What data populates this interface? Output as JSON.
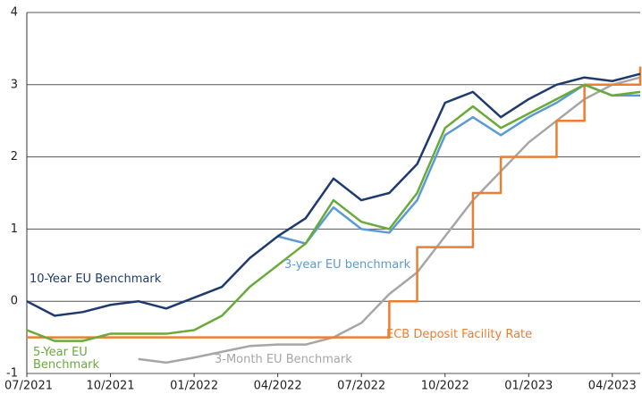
{
  "chart_data": {
    "type": "line",
    "x": [
      "07/2021",
      "08/2021",
      "09/2021",
      "10/2021",
      "11/2021",
      "12/2021",
      "01/2022",
      "02/2022",
      "03/2022",
      "04/2022",
      "05/2022",
      "06/2022",
      "07/2022",
      "08/2022",
      "09/2022",
      "10/2022",
      "11/2022",
      "12/2022",
      "01/2023",
      "02/2023",
      "03/2023",
      "04/2023",
      "05/2023"
    ],
    "xlim": [
      "07/2021",
      "05/2023"
    ],
    "xticks": [
      "07/2021",
      "10/2021",
      "01/2022",
      "04/2022",
      "07/2022",
      "10/2022",
      "01/2023",
      "04/2023"
    ],
    "ylim": [
      -1,
      4
    ],
    "yticks": [
      -1,
      0,
      1,
      2,
      3,
      4
    ],
    "grid": true,
    "series": [
      {
        "name": "10-Year EU Benchmark",
        "color": "#1f3a6e",
        "values": [
          0.0,
          -0.2,
          -0.15,
          -0.05,
          0.0,
          -0.1,
          0.05,
          0.2,
          0.6,
          0.9,
          1.15,
          1.7,
          1.4,
          1.5,
          1.9,
          2.75,
          2.9,
          2.55,
          2.8,
          3.0,
          3.1,
          3.05,
          3.15
        ]
      },
      {
        "name": "5-Year EU Benchmark",
        "color": "#6aaa3a",
        "values": [
          -0.4,
          -0.55,
          -0.55,
          -0.45,
          -0.45,
          -0.45,
          -0.4,
          -0.2,
          0.2,
          0.5,
          0.8,
          1.4,
          1.1,
          1.0,
          1.5,
          2.4,
          2.7,
          2.4,
          2.6,
          2.8,
          3.0,
          2.85,
          2.9
        ]
      },
      {
        "name": "3-year EU benchmark",
        "color": "#5b9bd5",
        "values": [
          null,
          null,
          null,
          null,
          null,
          null,
          null,
          null,
          null,
          0.9,
          0.8,
          1.3,
          1.0,
          0.95,
          1.4,
          2.3,
          2.55,
          2.3,
          2.55,
          2.75,
          3.0,
          2.85,
          2.85
        ]
      },
      {
        "name": "3-Month EU Benchmark",
        "color": "#a6a6a6",
        "values": [
          null,
          null,
          null,
          null,
          -0.8,
          -0.85,
          -0.78,
          -0.7,
          -0.62,
          -0.6,
          -0.6,
          -0.5,
          -0.3,
          0.1,
          0.4,
          0.9,
          1.4,
          1.8,
          2.2,
          2.5,
          2.8,
          3.0,
          3.1
        ]
      },
      {
        "name": "ECB Deposit Facility Rate",
        "color": "#ed7d31",
        "step": true,
        "values": [
          -0.5,
          -0.5,
          -0.5,
          -0.5,
          -0.5,
          -0.5,
          -0.5,
          -0.5,
          -0.5,
          -0.5,
          -0.5,
          -0.5,
          -0.5,
          0,
          0.75,
          0.75,
          1.5,
          2.0,
          2.0,
          2.5,
          3.0,
          3.0,
          3.25
        ]
      }
    ]
  }
}
